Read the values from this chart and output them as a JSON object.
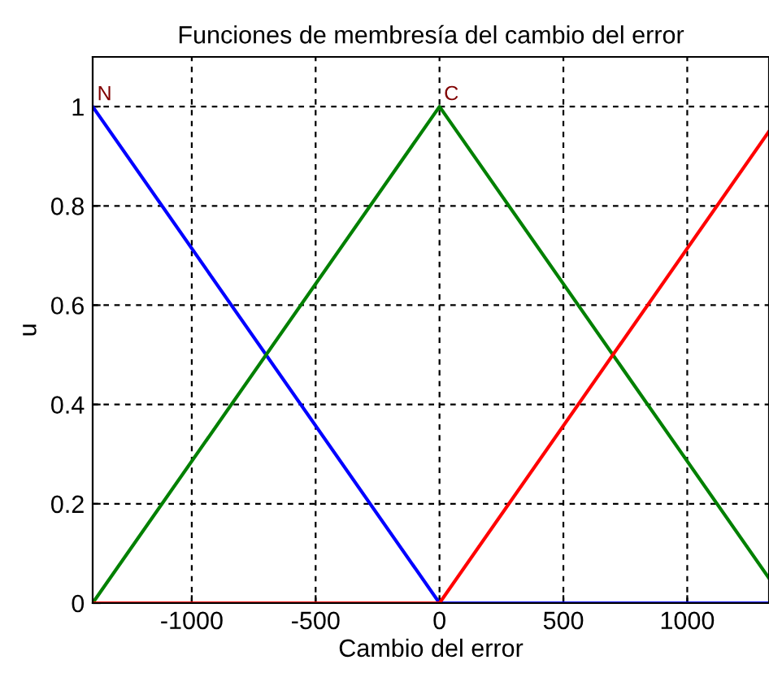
{
  "chart_data": {
    "type": "line",
    "title": "Funciones de membresía del cambio del error",
    "xlabel": "Cambio del error",
    "ylabel": "u",
    "xlim": [
      -1400,
      1330
    ],
    "ylim": [
      0,
      1.1
    ],
    "xticks": [
      -1000,
      -500,
      0,
      500,
      1000
    ],
    "yticks": [
      0,
      0.2,
      0.4,
      0.6,
      0.8,
      1
    ],
    "grid": true,
    "series": [
      {
        "color": "#0000ff",
        "x": [
          -1400,
          0,
          1330
        ],
        "values": [
          1,
          0,
          0
        ]
      },
      {
        "color": "#008000",
        "x": [
          -1400,
          0,
          1330
        ],
        "values": [
          0,
          1,
          0.05
        ]
      },
      {
        "color": "#ff0000",
        "x": [
          -1400,
          0,
          1330
        ],
        "values": [
          0,
          0,
          0.95
        ]
      }
    ],
    "annotations": [
      {
        "text": "N",
        "x": -1400,
        "y": 1
      },
      {
        "text": "C",
        "x": 0,
        "y": 1
      }
    ]
  }
}
